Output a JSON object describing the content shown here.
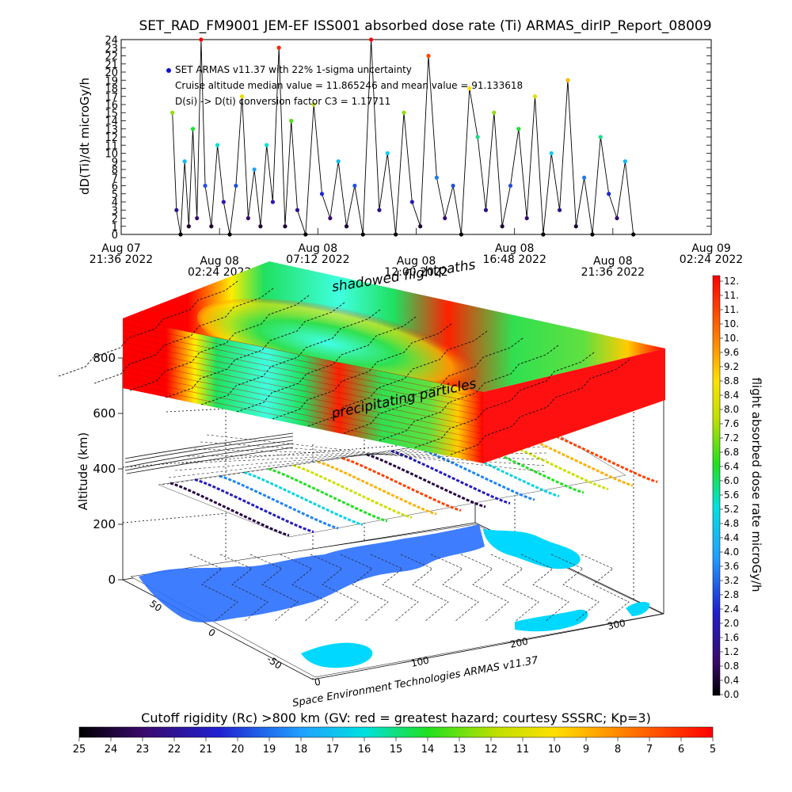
{
  "title": "SET_RAD_FM9001  JEM-EF ISS001 absorbed dose rate (Ti) ARMAS_dirIP_Report_08009",
  "chart_data": [
    {
      "type": "line",
      "ylabel": "dD(Ti)/dt microGy/h",
      "ylim": [
        0,
        24
      ],
      "yticks": [
        0,
        1,
        2,
        3,
        4,
        5,
        6,
        7,
        8,
        9,
        10,
        11,
        12,
        13,
        14,
        15,
        16,
        17,
        18,
        19,
        20,
        21,
        22,
        23,
        24
      ],
      "xticks": [
        {
          "l1": "Aug 07",
          "l2": "21:36 2022"
        },
        {
          "l1": "Aug 08",
          "l2": "02:24 2022"
        },
        {
          "l1": "Aug 08",
          "l2": "07:12 2022"
        },
        {
          "l1": "Aug 08",
          "l2": "12:00 2022"
        },
        {
          "l1": "Aug 08",
          "l2": "16:48 2022"
        },
        {
          "l1": "Aug 08",
          "l2": "21:36 2022"
        },
        {
          "l1": "Aug 09",
          "l2": "02:24 2022"
        }
      ],
      "xlim_hours": [
        0,
        28.8
      ],
      "annotations": [
        "SET ARMAS v11.37 with 22% 1-sigma uncertainty",
        "Cruise altitude median value = 11.865246 and mean value = 91.133618",
        "D(si) -> D(ti) conversion factor C3 = 1.17711"
      ],
      "series": [
        {
          "hours": [
            2.5,
            2.7,
            2.9,
            3.1,
            3.3,
            3.5,
            3.7,
            3.9,
            4.1,
            4.4,
            4.7,
            5.0,
            5.3,
            5.6,
            5.9,
            6.2,
            6.5,
            6.8,
            7.1,
            7.4,
            7.7,
            8.0,
            8.3,
            8.6,
            9.0,
            9.4,
            9.8,
            10.2,
            10.6,
            11.0,
            11.4,
            11.8,
            12.2,
            12.6,
            13.0,
            13.4,
            13.8,
            14.2,
            14.6,
            15.0,
            15.4,
            15.8,
            16.2,
            16.6,
            17.0,
            17.4,
            17.8,
            18.2,
            18.6,
            19.0,
            19.4,
            19.8,
            20.2,
            20.6,
            21.0,
            21.4,
            21.8,
            22.2,
            22.6,
            23.0,
            23.4,
            23.8,
            24.2,
            24.6,
            25.0
          ],
          "values": [
            15,
            3,
            0,
            9,
            1,
            13,
            2,
            24,
            6,
            1,
            11,
            4,
            0,
            6,
            17,
            2,
            8,
            1,
            11,
            4,
            23,
            1,
            14,
            3,
            0,
            16,
            5,
            2,
            9,
            1,
            6,
            0,
            24,
            3,
            10,
            0,
            15,
            4,
            1,
            22,
            7,
            2,
            6,
            0,
            18,
            12,
            3,
            15,
            1,
            6,
            13,
            2,
            17,
            0,
            10,
            3,
            19,
            1,
            7,
            0,
            12,
            5,
            2,
            9,
            0
          ]
        }
      ]
    },
    {
      "type": "surface3d",
      "ylabel": "Altitude (km)",
      "zticks": [
        0,
        200,
        400,
        600,
        800
      ],
      "lat_ticks": [
        50,
        0,
        -50
      ],
      "lon_ticks": [
        0,
        100,
        200,
        300
      ],
      "annotations": [
        "shadowed flightpaths",
        "precipitating particles"
      ],
      "credit": "Space Environment Technologies ARMAS v11.37"
    },
    {
      "type": "colorbar",
      "label": "flight absorbed dose rate microGy/h",
      "ticks": [
        "12.",
        "11.",
        "11.",
        "10.",
        "10.",
        "9.6",
        "9.2",
        "8.8",
        "8.4",
        "8.0",
        "7.6",
        "7.2",
        "6.8",
        "6.4",
        "6.0",
        "5.6",
        "5.2",
        "4.8",
        "4.4",
        "4.0",
        "3.6",
        "3.2",
        "2.8",
        "2.4",
        "2.0",
        "1.6",
        "1.2",
        "0.8",
        "0.4",
        "0.0"
      ]
    },
    {
      "type": "colorbar",
      "label": "Cutoff rigidity (Rc) >800 km (GV: red = greatest hazard; courtesy SSSRC; Kp=3)",
      "ticks": [
        "25",
        "24",
        "23",
        "22",
        "21",
        "20",
        "19",
        "18",
        "17",
        "16",
        "15",
        "14",
        "13",
        "12",
        "11",
        "10",
        "9",
        "8",
        "7",
        "6",
        "5"
      ]
    }
  ]
}
